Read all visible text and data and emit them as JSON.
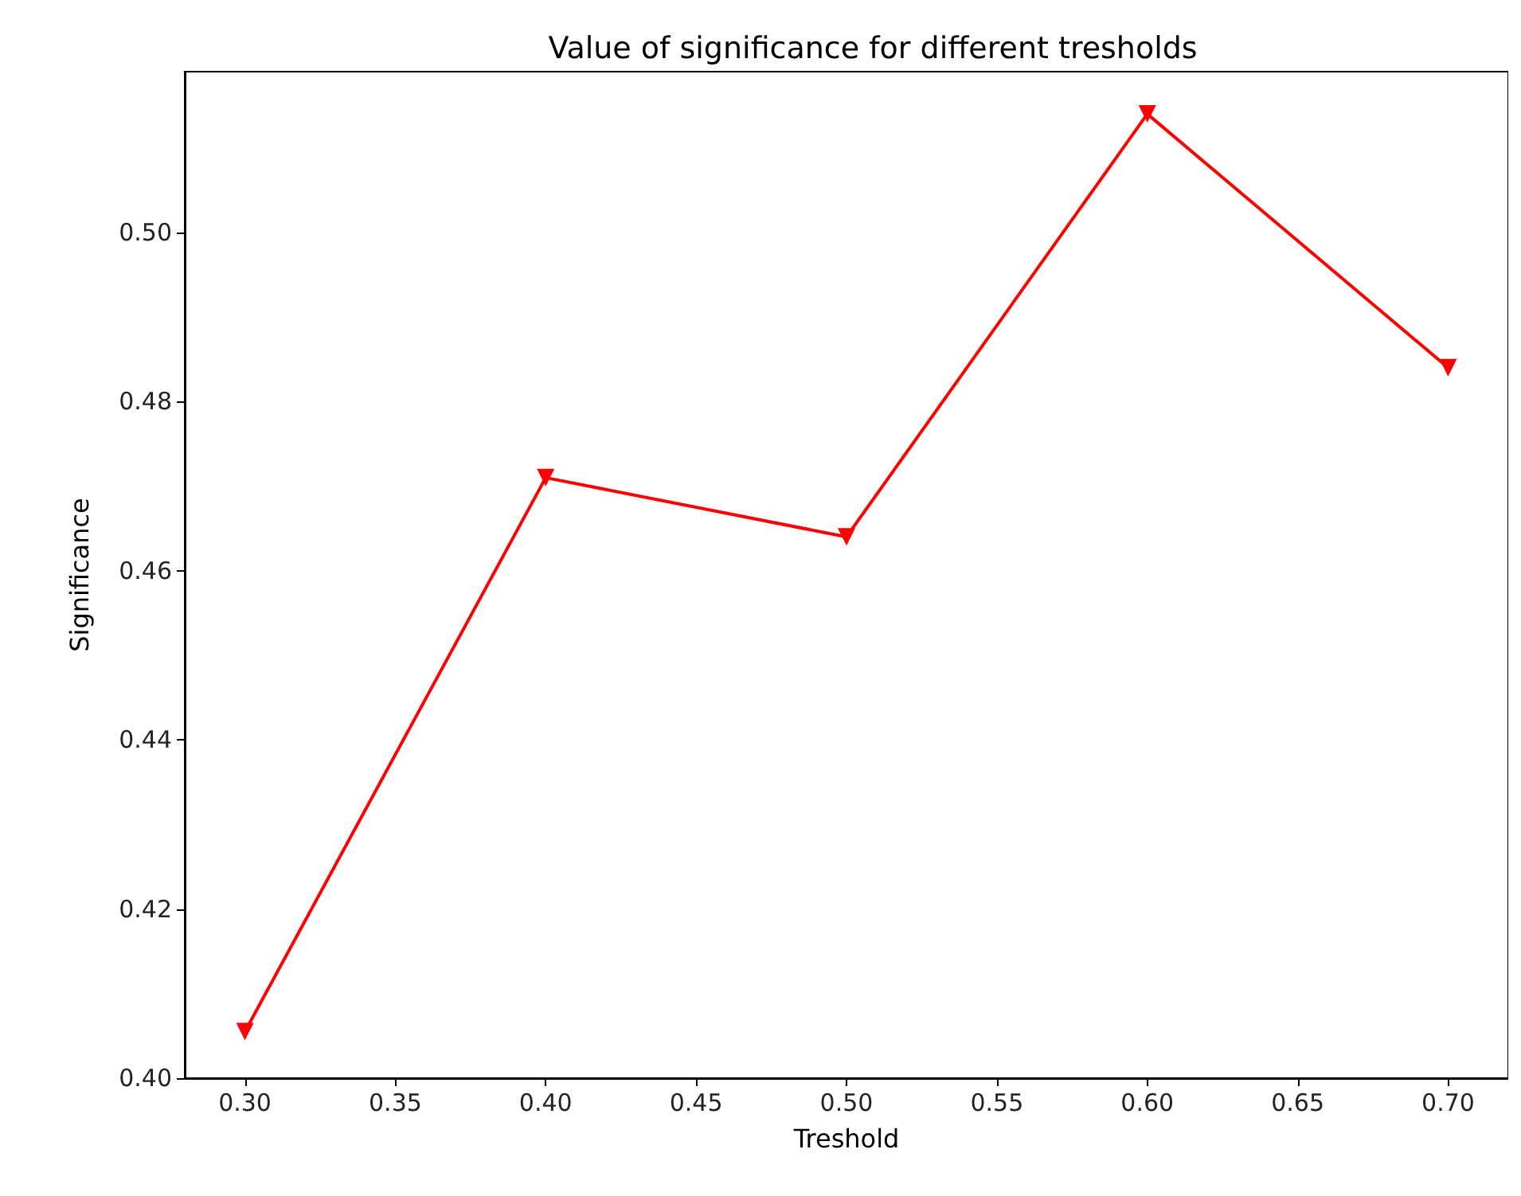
{
  "chart_data": {
    "type": "line",
    "title": "Value of significance for different tresholds",
    "xlabel": "Treshold",
    "ylabel": "Significance",
    "x": [
      0.3,
      0.4,
      0.5,
      0.6,
      0.7
    ],
    "series": [
      {
        "color": "#ff0000",
        "values": [
          0.4055,
          0.471,
          0.464,
          0.514,
          0.484
        ]
      }
    ],
    "xlim": [
      0.28,
      0.72
    ],
    "xticks": [
      {
        "value": 0.3,
        "label": "0.30"
      },
      {
        "value": 0.35,
        "label": "0.35"
      },
      {
        "value": 0.4,
        "label": "0.40"
      },
      {
        "value": 0.45,
        "label": "0.45"
      },
      {
        "value": 0.5,
        "label": "0.50"
      },
      {
        "value": 0.55,
        "label": "0.55"
      },
      {
        "value": 0.6,
        "label": "0.60"
      },
      {
        "value": 0.65,
        "label": "0.65"
      },
      {
        "value": 0.7,
        "label": "0.70"
      }
    ],
    "ylim": [
      0.4,
      0.519
    ],
    "yticks": [
      {
        "value": 0.4,
        "label": "0.40"
      },
      {
        "value": 0.42,
        "label": "0.42"
      },
      {
        "value": 0.44,
        "label": "0.44"
      },
      {
        "value": 0.46,
        "label": "0.46"
      },
      {
        "value": 0.48,
        "label": "0.48"
      },
      {
        "value": 0.5,
        "label": "0.50"
      }
    ],
    "grid": false,
    "marker": "triangle_down",
    "line_style": "solid"
  }
}
